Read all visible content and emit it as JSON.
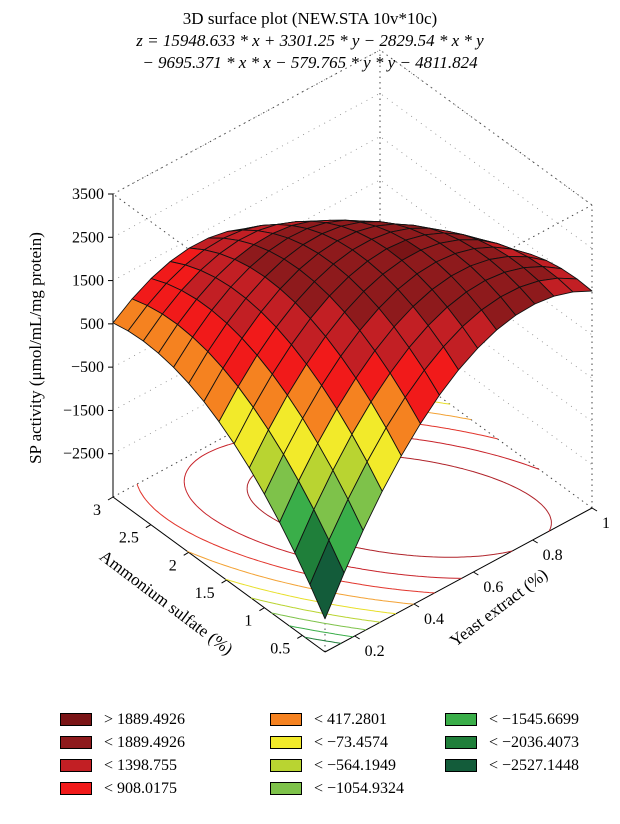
{
  "chart_data": {
    "type": "surface3d",
    "title": "3D surface plot (NEW.STA 10v*10c)",
    "equation_lines": [
      "z = 15948.633 * x + 3301.25 * y − 2829.54 * x * y",
      "− 9695.371 * x * x − 579.765 * y * y − 4811.824"
    ],
    "coefficients": {
      "x": 15948.633,
      "y": 3301.25,
      "xy": -2829.54,
      "xx": -9695.371,
      "yy": -579.765,
      "const": -4811.824
    },
    "xlabel": "Yeast extract (%)",
    "ylabel": "Ammonium sulfate (%)",
    "zlabel": "SP activity (μmol/mL/mg protein)",
    "x_range": [
      0.1,
      1.0
    ],
    "y_range": [
      0.2,
      3.0
    ],
    "z_range": [
      -3500,
      3500
    ],
    "x_ticks": [
      "0.2",
      "0.4",
      "0.6",
      "0.8",
      "1"
    ],
    "y_ticks": [
      "0.5",
      "1",
      "1.5",
      "2",
      "2.5",
      "3"
    ],
    "z_ticks": [
      "3500",
      "2500",
      "1500",
      "500",
      "−500",
      "−1500",
      "−2500"
    ],
    "x_tick_values": [
      0.2,
      0.4,
      0.6,
      0.8,
      1.0
    ],
    "y_tick_values": [
      0.5,
      1.0,
      1.5,
      2.0,
      2.5,
      3.0
    ],
    "z_tick_values": [
      3500,
      2500,
      1500,
      500,
      -500,
      -1500,
      -2500
    ],
    "contour_projection": true,
    "legend": [
      {
        "label": "> 1889.4926",
        "color": "#7a1416"
      },
      {
        "label": "< 1889.4926",
        "color": "#8e1a1c"
      },
      {
        "label": "< 1398.755",
        "color": "#c21f24"
      },
      {
        "label": "< 908.0175",
        "color": "#f11a1a"
      },
      {
        "label": "< 417.2801",
        "color": "#f58220"
      },
      {
        "label": "< −73.4574",
        "color": "#f2ea2a"
      },
      {
        "label": "< −564.1949",
        "color": "#b9d431"
      },
      {
        "label": "< −1054.9324",
        "color": "#7ec24a"
      },
      {
        "label": "< −1545.6699",
        "color": "#3aae49"
      },
      {
        "label": "< −2036.4073",
        "color": "#1f7f3a"
      },
      {
        "label": "< −2527.1448",
        "color": "#135c3a"
      }
    ]
  }
}
